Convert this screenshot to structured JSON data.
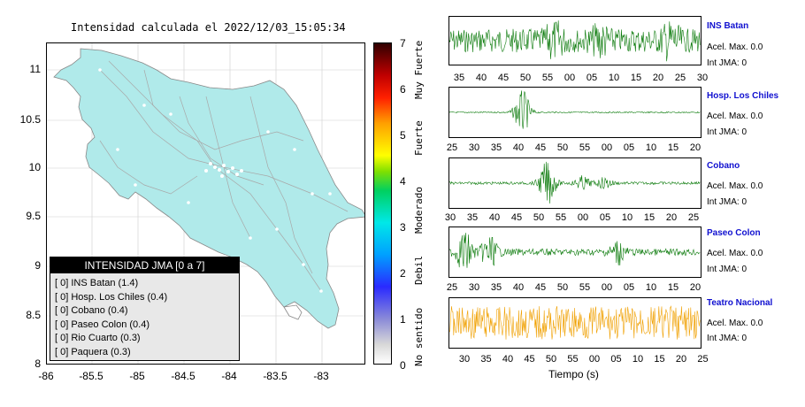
{
  "map": {
    "title": "Intensidad calculada el 2022/12/03_15:05:34",
    "y_ticks": [
      "11",
      "10.5",
      "10",
      "9.5",
      "9",
      "8.5",
      "8"
    ],
    "x_ticks": [
      "-86",
      "-85.5",
      "-85",
      "-84.5",
      "-84",
      "-83.5",
      "-83"
    ],
    "land_color": "#b0eaea"
  },
  "legend": {
    "title": "INTENSIDAD JMA [0 a 7]",
    "items": [
      "[ 0]  INS Batan (1.4)",
      "[ 0]  Hosp. Los Chiles (0.4)",
      "[ 0]  Cobano (0.4)",
      "[ 0]  Paseo Colon (0.4)",
      "[ 0]  Rio Cuarto (0.3)",
      "[ 0]  Paquera (0.3)"
    ]
  },
  "colorbar": {
    "ticks": [
      "7",
      "6",
      "5",
      "4",
      "3",
      "2",
      "1",
      "0"
    ],
    "labels": [
      "Muy Fuerte",
      "Fuerte",
      "Moderado",
      "Debil",
      "No sentido"
    ]
  },
  "stations": [
    {
      "name": "INS Batan",
      "acel": "Acel. Max. 0.0",
      "int": "Int JMA: 0",
      "color": "#0a7a0a",
      "ticks": [
        "35",
        "40",
        "45",
        "50",
        "55",
        "00",
        "05",
        "10",
        "15",
        "20",
        "25",
        "30"
      ]
    },
    {
      "name": "Hosp. Los Chiles",
      "acel": "Acel. Max. 0.0",
      "int": "Int JMA: 0",
      "color": "#0a7a0a",
      "ticks": [
        "25",
        "30",
        "35",
        "40",
        "45",
        "50",
        "55",
        "00",
        "05",
        "10",
        "15",
        "20"
      ]
    },
    {
      "name": "Cobano",
      "acel": "Acel. Max. 0.0",
      "int": "Int JMA: 0",
      "color": "#0a7a0a",
      "ticks": [
        "30",
        "35",
        "40",
        "45",
        "50",
        "55",
        "00",
        "05",
        "10",
        "15",
        "20",
        "25"
      ]
    },
    {
      "name": "Paseo Colon",
      "acel": "Acel. Max. 0.0",
      "int": "Int JMA: 0",
      "color": "#0a7a0a",
      "ticks": [
        "25",
        "30",
        "35",
        "40",
        "45",
        "50",
        "55",
        "00",
        "05",
        "10",
        "15",
        "20"
      ]
    },
    {
      "name": "Teatro Nacional",
      "acel": "Acel. Max. 0.0",
      "int": "Int JMA: 0",
      "color": "#f0a000",
      "ticks": [
        "30",
        "35",
        "40",
        "45",
        "50",
        "55",
        "00",
        "05",
        "10",
        "15",
        "20",
        "25"
      ]
    }
  ],
  "time_axis_label": "Tiempo (s)"
}
